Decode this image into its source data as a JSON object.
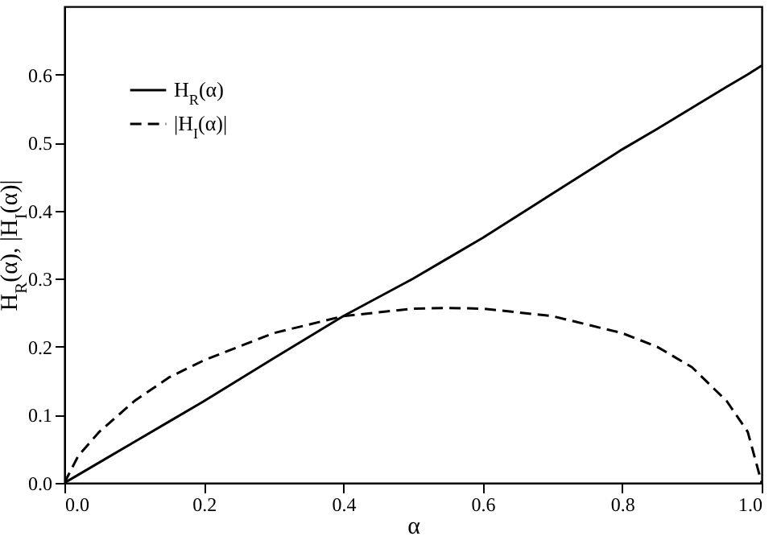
{
  "chart_data": {
    "type": "line",
    "xlabel": "α",
    "ylabel": "H$_{R}$(α), |H$_{I}$(α)|",
    "x": [
      0,
      0.02,
      0.05,
      0.1,
      0.15,
      0.2,
      0.3,
      0.4,
      0.5,
      0.55,
      0.6,
      0.7,
      0.8,
      0.85,
      0.9,
      0.95,
      0.98,
      1.0
    ],
    "series": [
      {
        "name": "H$_{R}$(α)",
        "color": "#000000",
        "line_style": "solid",
        "values": [
          0,
          0.012,
          0.03,
          0.06,
          0.09,
          0.12,
          0.183,
          0.245,
          0.3,
          0.33,
          0.36,
          0.425,
          0.49,
          0.52,
          0.551,
          0.582,
          0.6,
          0.613
        ]
      },
      {
        "name": "|H$_{I}$(α)|",
        "color": "#000000",
        "line_style": "dashed",
        "values": [
          0,
          0.04,
          0.075,
          0.12,
          0.155,
          0.18,
          0.22,
          0.245,
          0.256,
          0.257,
          0.256,
          0.245,
          0.22,
          0.2,
          0.17,
          0.12,
          0.075,
          0
        ]
      }
    ],
    "xlim": [
      0,
      1
    ],
    "xticks": [
      {
        "value": 0,
        "label": "0.0"
      },
      0.2,
      0.4,
      0.6,
      0.8,
      {
        "value": 1,
        "label": "1.0"
      }
    ],
    "ylim": [
      0,
      0.7
    ],
    "yticks": [
      {
        "value": 0,
        "label": "0.0"
      },
      0.1,
      0.2,
      0.3,
      0.4,
      0.5,
      0.6
    ],
    "legend": "top left"
  }
}
